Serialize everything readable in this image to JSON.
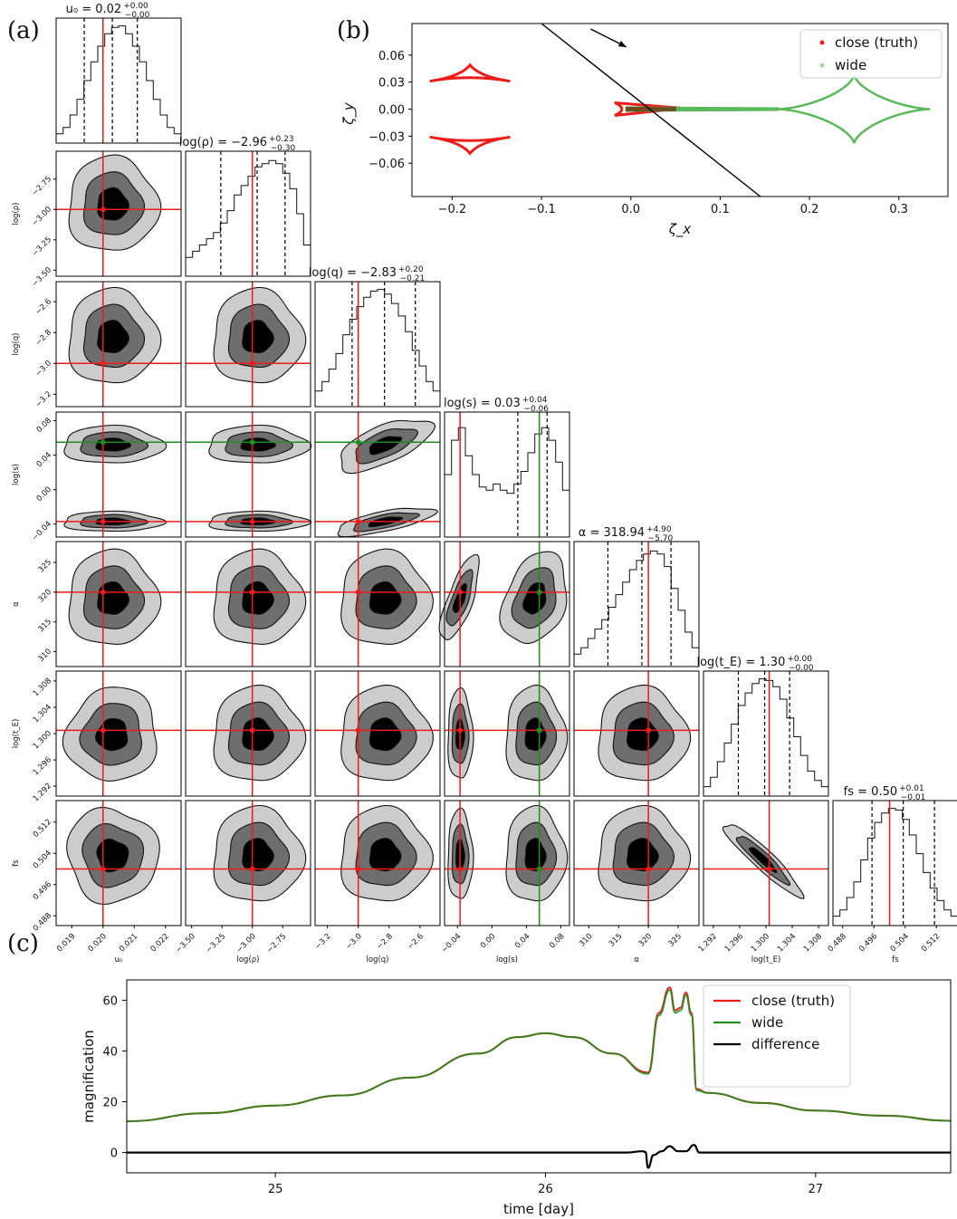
{
  "panel_labels": {
    "a": "(a)",
    "b": "(b)",
    "c": "(c)"
  },
  "colors": {
    "truth": "#ee1b1b",
    "wide": "#1e8f1e",
    "wide_caustic": "#5cb85c",
    "hist": "#111111",
    "c1": "#cccccc",
    "c2": "#6e6e6e",
    "c3": "#000000",
    "difference": "#000000"
  },
  "chart_data": [
    {
      "type": "heatmap",
      "title": "",
      "params": [
        {
          "key": "u0",
          "label": "u₀",
          "title": "u₀ = 0.02",
          "sup": "+0.00",
          "sub": "−0.00",
          "range": [
            0.0185,
            0.0225
          ],
          "ticks": [
            0.019,
            0.02,
            0.021,
            0.022
          ],
          "tick_labels": [
            "0.019",
            "0.020",
            "0.021",
            "0.022"
          ],
          "truth": 0.02,
          "q16": 0.0194,
          "q50": 0.0203,
          "q84": 0.0211,
          "hist": [
            6,
            10,
            18,
            28,
            40,
            52,
            62,
            70,
            74,
            75,
            70,
            62,
            52,
            40,
            28,
            18,
            10,
            6
          ]
        },
        {
          "key": "logrho",
          "label": "log(ρ)",
          "title": "log(ρ) = −2.96",
          "sup": "+0.23",
          "sub": "−0.30",
          "range": [
            -3.55,
            -2.52
          ],
          "ticks": [
            -3.5,
            -3.25,
            -3.0,
            -2.75
          ],
          "tick_labels": [
            "−3.50",
            "−3.25",
            "−3.00",
            "−2.75"
          ],
          "truth": -3.0,
          "q16": -3.26,
          "q50": -2.96,
          "q84": -2.73,
          "hist": [
            12,
            16,
            20,
            24,
            28,
            34,
            42,
            52,
            58,
            64,
            70,
            72,
            74,
            72,
            66,
            56,
            40,
            20
          ]
        },
        {
          "key": "logq",
          "label": "log(q)",
          "title": "log(q) = −2.83",
          "sup": "+0.20",
          "sub": "−0.21",
          "range": [
            -3.28,
            -2.47
          ],
          "ticks": [
            -3.2,
            -3.0,
            -2.8,
            -2.6
          ],
          "tick_labels": [
            "−3.2",
            "−3.0",
            "−2.8",
            "−2.6"
          ],
          "truth": -3.0,
          "q16": -3.04,
          "q50": -2.83,
          "q84": -2.63,
          "hist": [
            10,
            16,
            24,
            34,
            46,
            56,
            64,
            70,
            74,
            75,
            72,
            66,
            58,
            48,
            36,
            26,
            16,
            10
          ]
        },
        {
          "key": "logs",
          "label": "log(s)",
          "title": "log(s) = 0.03",
          "sup": "+0.04",
          "sub": "−0.06",
          "range": [
            -0.055,
            0.09
          ],
          "ticks": [
            -0.04,
            0.0,
            0.04,
            0.08
          ],
          "tick_labels": [
            "−0.04",
            "0.00",
            "0.04",
            "0.08"
          ],
          "truth": -0.037,
          "truth2": 0.055,
          "q16": -0.037,
          "q50": 0.03,
          "q84": 0.064,
          "hist": [
            40,
            62,
            70,
            52,
            40,
            32,
            30,
            34,
            30,
            28,
            34,
            42,
            54,
            66,
            70,
            62,
            48,
            30
          ]
        },
        {
          "key": "alpha",
          "label": "α",
          "title": "α = 318.94",
          "sup": "+4.90",
          "sub": "−5.70",
          "range": [
            307.5,
            328.5
          ],
          "ticks": [
            310,
            315,
            320,
            325
          ],
          "tick_labels": [
            "310",
            "315",
            "320",
            "325"
          ],
          "truth": 320,
          "q16": 313.2,
          "q50": 318.9,
          "q84": 323.8,
          "hist": [
            8,
            12,
            18,
            24,
            30,
            38,
            46,
            54,
            62,
            68,
            72,
            74,
            72,
            64,
            50,
            36,
            22,
            12
          ]
        },
        {
          "key": "logtE",
          "label": "log(t_E)",
          "title": "log(t_E) = 1.30",
          "sup": "+0.00",
          "sub": "−0.00",
          "range": [
            1.2905,
            1.3095
          ],
          "ticks": [
            1.292,
            1.296,
            1.3,
            1.304,
            1.308
          ],
          "tick_labels": [
            "1.292",
            "1.296",
            "1.300",
            "1.304",
            "1.308"
          ],
          "truth": 1.3005,
          "q16": 1.2958,
          "q50": 1.2998,
          "q84": 1.3036,
          "hist": [
            6,
            12,
            22,
            34,
            46,
            58,
            66,
            72,
            75,
            74,
            70,
            62,
            50,
            38,
            26,
            16,
            10,
            6
          ]
        },
        {
          "key": "fs",
          "label": "fs",
          "title": "fs = 0.50",
          "sup": "+0.01",
          "sub": "−0.01",
          "range": [
            0.4855,
            0.5175
          ],
          "ticks": [
            0.488,
            0.496,
            0.504,
            0.512
          ],
          "tick_labels": [
            "0.488",
            "0.496",
            "0.504",
            "0.512"
          ],
          "truth": 0.5,
          "q16": 0.4955,
          "q50": 0.5035,
          "q84": 0.5115,
          "hist": [
            6,
            10,
            18,
            28,
            42,
            56,
            66,
            72,
            75,
            74,
            68,
            58,
            46,
            34,
            24,
            16,
            10,
            6
          ]
        }
      ]
    },
    {
      "type": "scatter",
      "title": "",
      "xlabel": "ζ_x",
      "ylabel": "ζ_y",
      "xlim": [
        -0.245,
        0.355
      ],
      "ylim": [
        -0.097,
        0.095
      ],
      "xticks": [
        -0.2,
        -0.1,
        0.0,
        0.1,
        0.2,
        0.3
      ],
      "xtick_labels": [
        "−0.2",
        "−0.1",
        "0.0",
        "0.1",
        "0.2",
        "0.3"
      ],
      "yticks": [
        0.06,
        0.03,
        0.0,
        -0.03,
        -0.06
      ],
      "ytick_labels": [
        "0.06",
        "0.03",
        "0.00",
        "−0.03",
        "−0.06"
      ],
      "legend": [
        "close (truth)",
        "wide"
      ],
      "legend_position": "upper right",
      "source_trajectory": {
        "x": [
          -0.1,
          0.145
        ],
        "y": [
          0.095,
          -0.097
        ]
      },
      "arrow": {
        "x": [
          -0.045,
          -0.005
        ],
        "y": [
          0.089,
          0.069
        ]
      }
    },
    {
      "type": "line",
      "title": "",
      "xlabel": "time [day]",
      "ylabel": "magnification",
      "xlim": [
        24.45,
        27.5
      ],
      "ylim": [
        -8,
        68
      ],
      "xticks": [
        25,
        26,
        27
      ],
      "xtick_labels": [
        "25",
        "26",
        "27"
      ],
      "yticks": [
        0,
        20,
        40,
        60
      ],
      "ytick_labels": [
        "0",
        "20",
        "40",
        "60"
      ],
      "legend_position": "upper right",
      "series": [
        {
          "name": "close (truth)",
          "x": [
            24.45,
            24.75,
            25.0,
            25.25,
            25.5,
            25.75,
            25.9,
            26.0,
            26.1,
            26.25,
            26.38,
            26.42,
            26.46,
            26.48,
            26.5,
            26.52,
            26.54,
            26.56,
            26.6,
            26.8,
            27.0,
            27.25,
            27.5
          ],
          "y": [
            12.3,
            15.5,
            18.5,
            22.5,
            29.5,
            39.0,
            45.5,
            47.0,
            45.5,
            39.0,
            31.5,
            55.0,
            65.0,
            56.0,
            57.0,
            63.0,
            55.0,
            25.0,
            23.5,
            19.5,
            16.5,
            14.5,
            12.5
          ]
        },
        {
          "name": "wide",
          "x": [
            24.45,
            24.75,
            25.0,
            25.25,
            25.5,
            25.75,
            25.9,
            26.0,
            26.1,
            26.25,
            26.38,
            26.42,
            26.46,
            26.48,
            26.5,
            26.52,
            26.54,
            26.56,
            26.6,
            26.8,
            27.0,
            27.25,
            27.5
          ],
          "y": [
            12.3,
            15.5,
            18.5,
            22.5,
            29.5,
            39.0,
            45.5,
            47.0,
            45.5,
            39.0,
            31.0,
            54.0,
            64.0,
            55.0,
            56.0,
            62.0,
            54.0,
            24.5,
            23.5,
            19.5,
            16.5,
            14.5,
            12.5
          ]
        },
        {
          "name": "difference",
          "x": [
            24.45,
            25.5,
            26.3,
            26.36,
            26.37,
            26.38,
            26.4,
            26.43,
            26.46,
            26.49,
            26.52,
            26.55,
            26.57,
            26.6,
            27.5
          ],
          "y": [
            0,
            0,
            0,
            0.5,
            0.2,
            -6.0,
            -1.0,
            0.5,
            2.5,
            0.5,
            0.5,
            3.0,
            0,
            0,
            0
          ]
        }
      ]
    }
  ]
}
